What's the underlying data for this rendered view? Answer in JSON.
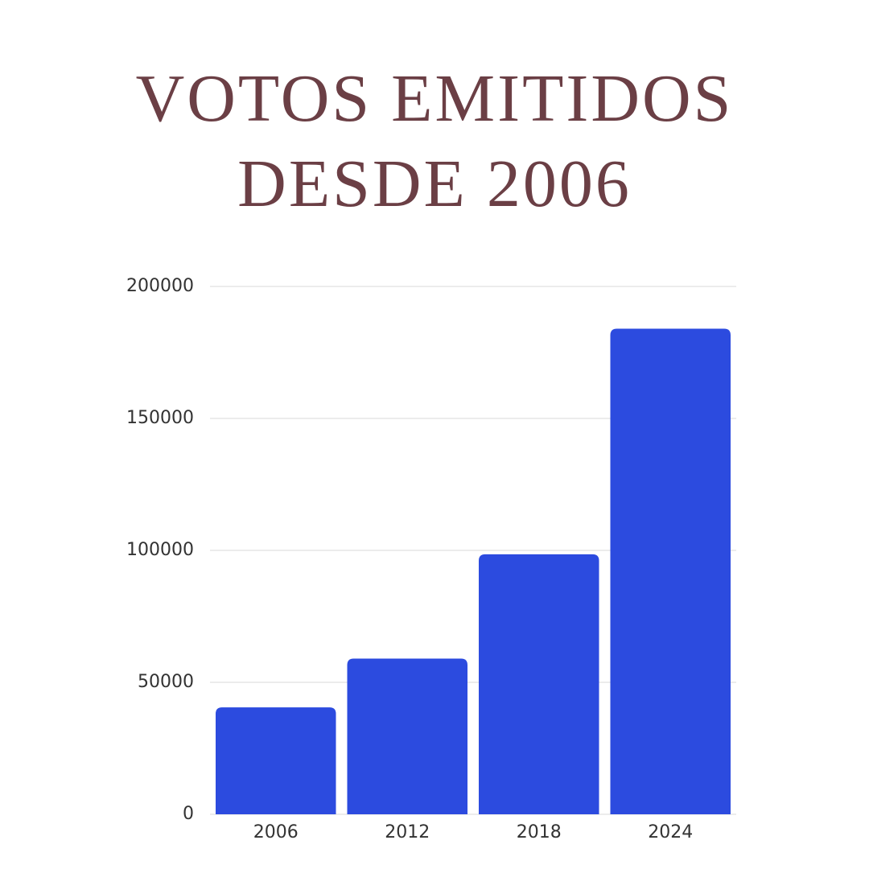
{
  "chart_data": {
    "type": "bar",
    "title": "VOTOS EMITIDOS DESDE 2006",
    "categories": [
      "2006",
      "2012",
      "2018",
      "2024"
    ],
    "values": [
      40500,
      59000,
      98500,
      184000
    ],
    "color": "#2c4bdf",
    "ylim": [
      0,
      200000
    ],
    "yticks": [
      0,
      50000,
      100000,
      150000,
      200000
    ],
    "grid": true
  }
}
